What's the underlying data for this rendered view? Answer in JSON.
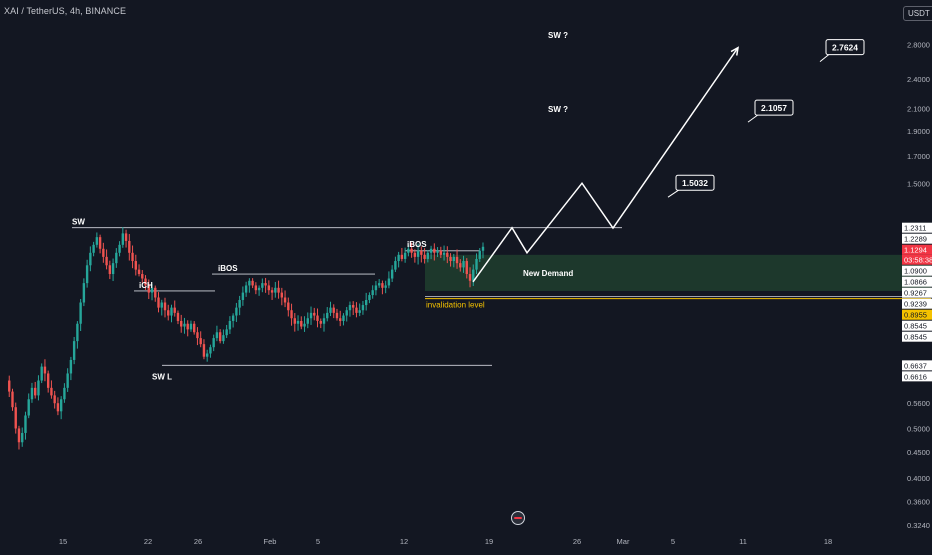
{
  "header": {
    "symbol": "XAI / TetherUS, 4h, BINANCE",
    "currency": "USDT"
  },
  "colors": {
    "background": "#131722",
    "candle_up": "#26a69a",
    "candle_down": "#ef5350",
    "demand_zone": "#1e3a2d",
    "invalidation": "#f5c200",
    "drawing": "#ffffff",
    "axis_text": "#b2b5be",
    "last_price": "#f23645"
  },
  "icons": {
    "replay": "replay-icon"
  },
  "chart_data": {
    "type": "candlestick",
    "title": "",
    "y_scale": "log",
    "ylim": [
      0.317,
      3.3
    ],
    "y_ticks": [
      2.8,
      2.4,
      2.1,
      1.9,
      1.7,
      1.5,
      0.56,
      0.5,
      0.45,
      0.4,
      0.36,
      0.324
    ],
    "x_tick_labels": [
      "15",
      "22",
      "26",
      "Feb",
      "5",
      "12",
      "19",
      "26",
      "Mar",
      "5",
      "11",
      "18"
    ],
    "grid": false,
    "price_labels": [
      {
        "text": "1.2311",
        "value": 1.2311,
        "style": "white"
      },
      {
        "text": "1.2289",
        "value": 1.2289,
        "style": "white"
      },
      {
        "text": "1.1294",
        "value": 1.1294,
        "style": "last"
      },
      {
        "text": "03:58:38",
        "value": 1.1294,
        "style": "countdown"
      },
      {
        "text": "1.0900",
        "value": 1.09,
        "style": "white"
      },
      {
        "text": "1.0866",
        "value": 1.0866,
        "style": "white"
      },
      {
        "text": "0.9267",
        "value": 0.9267,
        "style": "white"
      },
      {
        "text": "0.9239",
        "value": 0.9239,
        "style": "white"
      },
      {
        "text": "0.8955",
        "value": 0.8955,
        "style": "yellow"
      },
      {
        "text": "0.8545",
        "value": 0.8545,
        "style": "white"
      },
      {
        "text": "0.8545",
        "value": 0.8545,
        "style": "white"
      },
      {
        "text": "0.6637",
        "value": 0.6637,
        "style": "white"
      },
      {
        "text": "0.6616",
        "value": 0.6616,
        "style": "white"
      }
    ],
    "candles_closes": [
      0.62,
      0.59,
      0.55,
      0.5,
      0.47,
      0.49,
      0.53,
      0.57,
      0.6,
      0.58,
      0.62,
      0.66,
      0.64,
      0.6,
      0.58,
      0.56,
      0.54,
      0.57,
      0.6,
      0.64,
      0.68,
      0.74,
      0.8,
      0.88,
      0.96,
      1.04,
      1.1,
      1.14,
      1.18,
      1.12,
      1.08,
      1.04,
      1.0,
      1.05,
      1.1,
      1.14,
      1.2,
      1.16,
      1.1,
      1.06,
      1.02,
      1.0,
      0.98,
      0.95,
      0.92,
      0.94,
      0.9,
      0.86,
      0.88,
      0.85,
      0.83,
      0.86,
      0.84,
      0.81,
      0.79,
      0.8,
      0.78,
      0.8,
      0.77,
      0.75,
      0.73,
      0.69,
      0.7,
      0.72,
      0.75,
      0.77,
      0.74,
      0.76,
      0.78,
      0.81,
      0.83,
      0.86,
      0.89,
      0.92,
      0.95,
      0.97,
      0.95,
      0.93,
      0.94,
      0.96,
      0.95,
      0.93,
      0.92,
      0.94,
      0.92,
      0.9,
      0.88,
      0.85,
      0.82,
      0.8,
      0.81,
      0.79,
      0.8,
      0.82,
      0.84,
      0.83,
      0.81,
      0.8,
      0.82,
      0.84,
      0.86,
      0.84,
      0.82,
      0.81,
      0.83,
      0.85,
      0.87,
      0.86,
      0.84,
      0.85,
      0.87,
      0.89,
      0.91,
      0.93,
      0.95,
      0.96,
      0.94,
      0.95,
      0.98,
      1.02,
      1.06,
      1.09,
      1.07,
      1.1,
      1.12,
      1.1,
      1.08,
      1.11,
      1.09,
      1.07,
      1.1,
      1.12,
      1.1,
      1.11,
      1.09,
      1.1,
      1.08,
      1.06,
      1.08,
      1.05,
      1.03,
      1.06,
      1.0,
      0.97,
      1.02,
      1.07,
      1.11,
      1.13
    ],
    "annotations": [
      {
        "id": "sw",
        "text": "SW"
      },
      {
        "id": "ich",
        "text": "iCH"
      },
      {
        "id": "swl",
        "text": "SW L"
      },
      {
        "id": "ibos1",
        "text": "iBOS"
      },
      {
        "id": "ibos2",
        "text": "iBOS"
      },
      {
        "id": "demand",
        "text": "New Demand"
      },
      {
        "id": "invalid",
        "text": "invalidation level"
      },
      {
        "id": "swq1",
        "text": "SW ?"
      },
      {
        "id": "swq2",
        "text": "SW ?"
      }
    ],
    "targets": [
      {
        "text": "1.5032",
        "value": 1.5032
      },
      {
        "text": "2.1057",
        "value": 2.1057
      },
      {
        "text": "2.7624",
        "value": 2.7624
      }
    ],
    "levels": {
      "sw_high": 1.2311,
      "sw_low": 0.6637,
      "ich": 0.9267,
      "ibos1": 1.0,
      "ibos2": 1.11,
      "demand_top": 1.09,
      "demand_bottom": 0.9267,
      "invalidation": 0.8955
    },
    "projection_path": [
      {
        "step": 0,
        "value": 0.965
      },
      {
        "step": 1,
        "value": 1.2311
      },
      {
        "step": 2,
        "value": 1.1
      },
      {
        "step": 3,
        "value": 1.5032
      },
      {
        "step": 4,
        "value": 1.2289
      },
      {
        "step": 5,
        "value": 2.7624
      }
    ]
  }
}
